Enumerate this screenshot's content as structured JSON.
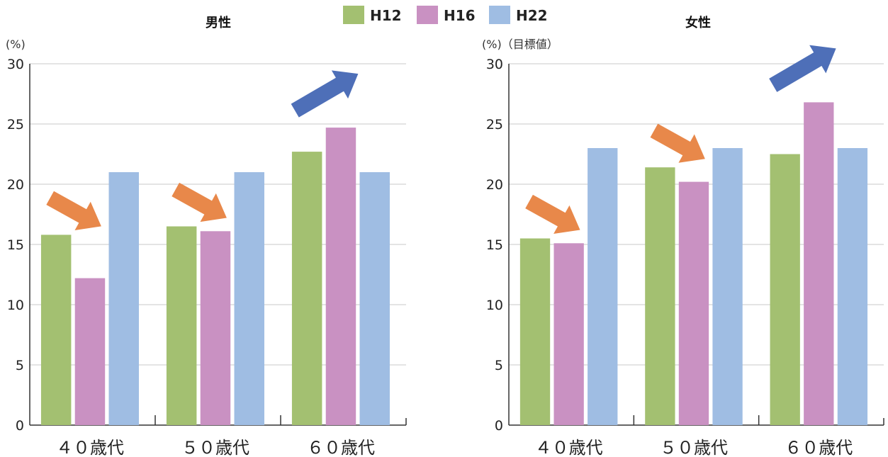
{
  "legend": [
    {
      "label": "H12",
      "color": "#a3c071"
    },
    {
      "label": "H16",
      "color": "#c991c2"
    },
    {
      "label": "H22",
      "color": "#9fbde3"
    }
  ],
  "trend_arrow_colors": {
    "decrease": "#e8884a",
    "increase": "#4e6fb8"
  },
  "chart_data": [
    {
      "type": "bar",
      "title": "男性",
      "ylabel": "(%)",
      "ylim": [
        0,
        30
      ],
      "yticks": [
        0,
        5,
        10,
        15,
        20,
        25,
        30
      ],
      "categories": [
        "４０歳代",
        "５０歳代",
        "６０歳代"
      ],
      "series": [
        {
          "name": "H12",
          "values": [
            15.8,
            16.5,
            22.7
          ]
        },
        {
          "name": "H16",
          "values": [
            12.2,
            16.1,
            24.7
          ]
        },
        {
          "name": "H22",
          "values": [
            21.0,
            21.0,
            21.0
          ]
        }
      ],
      "trend_arrows": [
        "decrease",
        "decrease",
        "increase"
      ],
      "grid": true
    },
    {
      "type": "bar",
      "title": "女性",
      "ylabel": "(%)（目標値）",
      "ylim": [
        0,
        30
      ],
      "yticks": [
        0,
        5,
        10,
        15,
        20,
        25,
        30
      ],
      "categories": [
        "４０歳代",
        "５０歳代",
        "６０歳代"
      ],
      "series": [
        {
          "name": "H12",
          "values": [
            15.5,
            21.4,
            22.5
          ]
        },
        {
          "name": "H16",
          "values": [
            15.1,
            20.2,
            26.8
          ]
        },
        {
          "name": "H22",
          "values": [
            23.0,
            23.0,
            23.0
          ]
        }
      ],
      "trend_arrows": [
        "decrease",
        "decrease",
        "increase"
      ],
      "grid": true
    }
  ]
}
